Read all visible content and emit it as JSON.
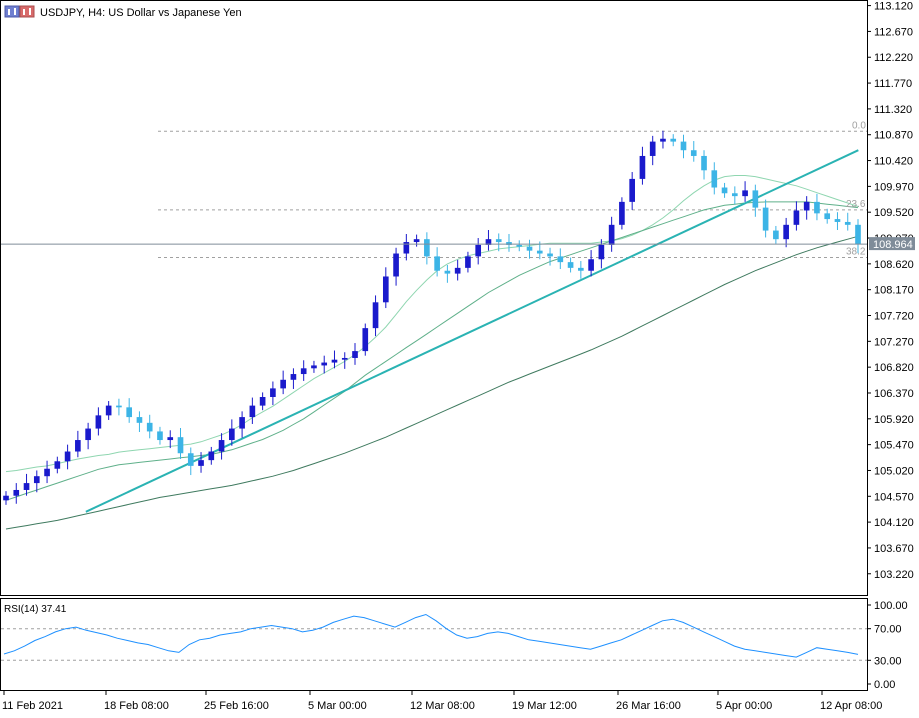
{
  "header": {
    "title": "USDJPY, H4:  US Dollar vs Japanese Yen"
  },
  "rsi_label": "RSI(14) 37.41",
  "current_price": "108.964",
  "fib_labels": [
    "0.0",
    "23.6",
    "38.2"
  ],
  "colors": {
    "bull_candle": "#1a1acc",
    "bear_candle": "#3cb4e6",
    "trendline": "#2ab3b3",
    "ma_fast": "#8fd6b0",
    "ma_mid": "#5fb08a",
    "ma_slow": "#3f7a5f",
    "rsi_line": "#1e90ff",
    "grid_dashed": "#a0a0a0",
    "price_label_bg": "#7f8c99"
  },
  "icons": [
    "chart-window-icon"
  ],
  "chart_data": [
    {
      "type": "line",
      "title": "USDJPY, H4:  US Dollar vs Japanese Yen",
      "y_ticks": [
        "113.120",
        "112.670",
        "112.220",
        "111.770",
        "111.320",
        "110.870",
        "110.420",
        "109.970",
        "109.520",
        "109.070",
        "108.620",
        "108.170",
        "107.720",
        "107.270",
        "106.820",
        "106.370",
        "105.920",
        "105.470",
        "105.020",
        "104.570",
        "104.120",
        "103.670",
        "103.220"
      ],
      "x_ticks": [
        "11 Feb 2021",
        "18 Feb 08:00",
        "25 Feb 16:00",
        "5 Mar 00:00",
        "12 Mar 08:00",
        "19 Mar 12:00",
        "26 Mar 16:00",
        "5 Apr 00:00",
        "12 Apr 08:00"
      ],
      "ylim": [
        102.85,
        113.2
      ],
      "series": [
        {
          "values": [
            104.58,
            104.68,
            104.8,
            104.92,
            105.05,
            105.18,
            105.35,
            105.55,
            105.75,
            105.98,
            106.15,
            106.12,
            105.95,
            105.85,
            105.7,
            105.55,
            105.6,
            105.32,
            105.1,
            105.2,
            105.35,
            105.55,
            105.75,
            105.95,
            106.15,
            106.3,
            106.45,
            106.6,
            106.7,
            106.8,
            106.85,
            106.9,
            106.95,
            106.98,
            107.1,
            107.5,
            107.95,
            108.4,
            108.8,
            109.0,
            109.05,
            108.75,
            108.5,
            108.45,
            108.55,
            108.75,
            108.95,
            109.05,
            109.0,
            108.95,
            108.92,
            108.85,
            108.8,
            108.75,
            108.65,
            108.55,
            108.5,
            108.7,
            108.95,
            109.3,
            109.7,
            110.1,
            110.5,
            110.75,
            110.8,
            110.75,
            110.6,
            110.5,
            110.25,
            109.95,
            109.85,
            109.8,
            109.9,
            109.6,
            109.2,
            109.05,
            109.3,
            109.55,
            109.7,
            109.5,
            109.4,
            109.35,
            109.3,
            108.964
          ]
        },
        {
          "values": [
            105.0,
            105.02,
            105.05,
            105.08,
            105.1,
            105.14,
            105.18,
            105.22,
            105.25,
            105.28,
            105.3,
            105.34,
            105.36,
            105.38,
            105.4,
            105.42,
            105.44,
            105.46,
            105.48,
            105.52,
            105.58,
            105.64,
            105.72,
            105.82,
            105.94,
            106.04,
            106.14,
            106.26,
            106.38,
            106.5,
            106.62,
            106.72,
            106.82,
            106.92,
            107.04,
            107.18,
            107.34,
            107.52,
            107.74,
            107.96,
            108.16,
            108.34,
            108.5,
            108.62,
            108.7,
            108.76,
            108.8,
            108.84,
            108.88,
            108.9,
            108.92,
            108.94,
            108.96,
            108.98,
            108.98,
            108.98,
            108.98,
            108.98,
            109.0,
            109.02,
            109.06,
            109.12,
            109.2,
            109.3,
            109.42,
            109.56,
            109.72,
            109.86,
            109.98,
            110.08,
            110.14,
            110.16,
            110.16,
            110.14,
            110.1,
            110.06,
            110.02,
            109.98,
            109.92,
            109.86,
            109.8,
            109.74,
            109.68,
            109.62
          ]
        },
        {
          "values": [
            104.5,
            104.56,
            104.62,
            104.68,
            104.74,
            104.8,
            104.86,
            104.92,
            104.98,
            105.04,
            105.08,
            105.12,
            105.14,
            105.16,
            105.18,
            105.2,
            105.22,
            105.24,
            105.26,
            105.28,
            105.3,
            105.34,
            105.38,
            105.44,
            105.5,
            105.56,
            105.64,
            105.72,
            105.82,
            105.92,
            106.04,
            106.16,
            106.28,
            106.4,
            106.54,
            106.68,
            106.8,
            106.92,
            107.04,
            107.16,
            107.28,
            107.4,
            107.52,
            107.64,
            107.76,
            107.88,
            108.0,
            108.12,
            108.22,
            108.32,
            108.42,
            108.5,
            108.58,
            108.66,
            108.72,
            108.78,
            108.84,
            108.9,
            108.96,
            109.02,
            109.08,
            109.14,
            109.2,
            109.26,
            109.32,
            109.38,
            109.44,
            109.5,
            109.56,
            109.6,
            109.64,
            109.66,
            109.68,
            109.69,
            109.7,
            109.7,
            109.7,
            109.7,
            109.7,
            109.68,
            109.66,
            109.64,
            109.62,
            109.6
          ]
        },
        {
          "values": [
            104.0,
            104.03,
            104.06,
            104.09,
            104.12,
            104.15,
            104.19,
            104.23,
            104.27,
            104.31,
            104.35,
            104.39,
            104.43,
            104.47,
            104.51,
            104.55,
            104.58,
            104.61,
            104.64,
            104.67,
            104.7,
            104.73,
            104.76,
            104.8,
            104.84,
            104.88,
            104.92,
            104.97,
            105.02,
            105.08,
            105.14,
            105.2,
            105.26,
            105.32,
            105.39,
            105.46,
            105.53,
            105.6,
            105.68,
            105.76,
            105.84,
            105.92,
            106.0,
            106.08,
            106.16,
            106.24,
            106.32,
            106.4,
            106.48,
            106.56,
            106.63,
            106.7,
            106.77,
            106.84,
            106.91,
            106.98,
            107.05,
            107.12,
            107.2,
            107.28,
            107.36,
            107.45,
            107.54,
            107.63,
            107.72,
            107.81,
            107.9,
            107.99,
            108.08,
            108.17,
            108.26,
            108.34,
            108.42,
            108.5,
            108.57,
            108.64,
            108.71,
            108.78,
            108.84,
            108.9,
            108.95,
            109.0,
            109.05,
            109.1
          ]
        }
      ],
      "fib_levels": [
        110.93,
        109.56,
        108.73
      ],
      "trendline_points": [
        [
          0.098,
          104.3
        ],
        [
          0.99,
          110.6
        ]
      ]
    },
    {
      "type": "line",
      "title": "RSI(14) 37.41",
      "y_ticks": [
        "100.00",
        "70.00",
        "30.00",
        "0.00"
      ],
      "ylim": [
        0,
        100
      ],
      "levels": [
        70,
        30
      ],
      "series": [
        {
          "values": [
            38,
            42,
            48,
            55,
            60,
            66,
            70,
            72,
            68,
            65,
            62,
            58,
            55,
            52,
            50,
            46,
            42,
            40,
            50,
            56,
            58,
            62,
            64,
            66,
            70,
            72,
            74,
            72,
            70,
            66,
            68,
            72,
            78,
            82,
            86,
            84,
            80,
            76,
            72,
            78,
            84,
            88,
            80,
            70,
            62,
            58,
            60,
            64,
            66,
            64,
            60,
            56,
            54,
            52,
            50,
            48,
            46,
            44,
            48,
            52,
            56,
            62,
            68,
            74,
            80,
            82,
            78,
            72,
            66,
            60,
            54,
            48,
            44,
            42,
            40,
            38,
            36,
            34,
            40,
            46,
            44,
            42,
            40,
            37.41
          ]
        }
      ]
    }
  ]
}
